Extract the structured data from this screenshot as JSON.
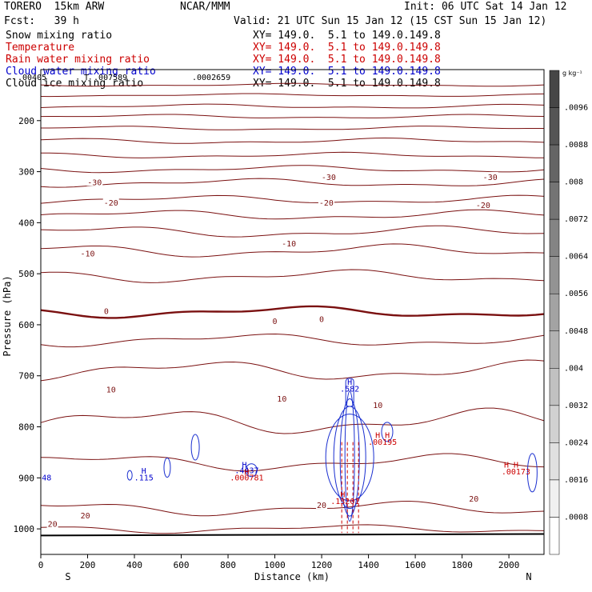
{
  "header": {
    "model": "TORERO  15km ARW",
    "org": "NCAR/MMM",
    "init": "Init: 06 UTC Sat 14 Jan 12",
    "fcst": "Fcst:   39 h",
    "valid": "Valid: 21 UTC Sun 15 Jan 12 (15 CST Sun 15 Jan 12)"
  },
  "fields": [
    {
      "name": "Snow mixing ratio",
      "xy": "",
      "color": "#000000"
    },
    {
      "name": "Temperature",
      "xy": "XY= 149.0.  5.1 to 149.0.149.8",
      "color": "#cc0000"
    },
    {
      "name": "Rain water mixing ratio",
      "xy": "XY= 149.0.  5.1 to 149.0.149.8",
      "color": "#cc0000"
    },
    {
      "name": "Cloud water mixing ratio",
      "xy": "XY= 149.0.  5.1 to 149.0.149.8",
      "color": "#0000cc"
    },
    {
      "name": "Cloud ice mixing ratio",
      "xy": "XY= 149.0.  5.1 to 149.0.149.8",
      "color": "#000000"
    }
  ],
  "snow_xy": "XY= 149.0.  5.1 to 149.0.149.8",
  "top_values": [
    ".00405",
    "T .007589",
    ".0002659"
  ],
  "chart_data": {
    "type": "contour",
    "xlabel": "Distance (km)",
    "ylabel": "Pressure (hPa)",
    "xlim": [
      0,
      2150
    ],
    "ylim": [
      1050,
      100
    ],
    "x_ticks": [
      0,
      200,
      400,
      600,
      800,
      1000,
      1200,
      1400,
      1600,
      1800,
      2000
    ],
    "y_ticks": [
      200,
      300,
      400,
      500,
      600,
      700,
      800,
      900,
      1000
    ],
    "end_labels": [
      "S",
      "N"
    ],
    "colorbar": {
      "unit": "g kg⁻¹",
      "ticks": [
        ".0096",
        ".0088",
        ".008",
        ".0072",
        ".0064",
        ".0056",
        ".0048",
        ".004",
        ".0032",
        ".0024",
        ".0016",
        ".0008"
      ]
    },
    "temperature_labels": [
      {
        "text": "-30",
        "x": 230,
        "p": 320
      },
      {
        "text": "-30",
        "x": 1230,
        "p": 310
      },
      {
        "text": "-30",
        "x": 1920,
        "p": 310
      },
      {
        "text": "-20",
        "x": 300,
        "p": 360
      },
      {
        "text": "-20",
        "x": 1220,
        "p": 360
      },
      {
        "text": "-20",
        "x": 1890,
        "p": 365
      },
      {
        "text": "-10",
        "x": 200,
        "p": 460
      },
      {
        "text": "-10",
        "x": 1060,
        "p": 440
      },
      {
        "text": "0",
        "x": 280,
        "p": 573
      },
      {
        "text": "0",
        "x": 1000,
        "p": 592
      },
      {
        "text": "0",
        "x": 1200,
        "p": 588
      },
      {
        "text": "10",
        "x": 300,
        "p": 726
      },
      {
        "text": "10",
        "x": 1030,
        "p": 744
      },
      {
        "text": "10",
        "x": 1440,
        "p": 757
      },
      {
        "text": "20",
        "x": 50,
        "p": 990
      },
      {
        "text": "20",
        "x": 190,
        "p": 973
      },
      {
        "text": "20",
        "x": 1200,
        "p": 953
      },
      {
        "text": "20",
        "x": 1850,
        "p": 940
      }
    ],
    "hl_labels": [
      {
        "text": "H",
        "x": 1320,
        "p": 718,
        "color": "#0000cc"
      },
      {
        "text": ".582",
        "x": 1320,
        "p": 731,
        "color": "#0000cc"
      },
      {
        "text": "H",
        "x": 440,
        "p": 892,
        "color": "#0000cc"
      },
      {
        "text": ".115",
        "x": 440,
        "p": 905,
        "color": "#0000cc"
      },
      {
        "text": "H",
        "x": 870,
        "p": 880,
        "color": "#0000cc"
      },
      {
        "text": ".4437",
        "x": 880,
        "p": 891,
        "color": "#0000cc"
      },
      {
        "text": "H",
        "x": 880,
        "p": 894,
        "color": "#cc0000"
      },
      {
        "text": ".000781",
        "x": 880,
        "p": 905,
        "color": "#cc0000"
      },
      {
        "text": "H H",
        "x": 1460,
        "p": 822,
        "color": "#cc0000"
      },
      {
        "text": ".00195",
        "x": 1460,
        "p": 835,
        "color": "#cc0000"
      },
      {
        "text": "H H",
        "x": 2010,
        "p": 880,
        "color": "#cc0000"
      },
      {
        "text": ".00173",
        "x": 2030,
        "p": 893,
        "color": "#cc0000"
      },
      {
        "text": "H",
        "x": 1290,
        "p": 938,
        "color": "#cc0000"
      },
      {
        "text": ".13201",
        "x": 1300,
        "p": 951,
        "color": "#cc0000"
      },
      {
        "text": "48",
        "x": 25,
        "p": 905,
        "color": "#0000cc"
      }
    ],
    "temperature_contours": [
      {
        "value": -55,
        "base": 130,
        "amp": 2
      },
      {
        "value": -52,
        "base": 150,
        "amp": 2
      },
      {
        "value": -49,
        "base": 172,
        "amp": 3
      },
      {
        "value": -46,
        "base": 192,
        "amp": 3
      },
      {
        "value": -43,
        "base": 215,
        "amp": 3
      },
      {
        "value": -40,
        "base": 240,
        "amp": 4
      },
      {
        "value": -37,
        "base": 268,
        "amp": 4
      },
      {
        "value": -33,
        "base": 295,
        "amp": 5
      },
      {
        "value": -30,
        "base": 322,
        "amp": 6
      },
      {
        "value": -25,
        "base": 355,
        "amp": 6
      },
      {
        "value": -20,
        "base": 385,
        "amp": 7
      },
      {
        "value": -15,
        "base": 418,
        "amp": 8
      },
      {
        "value": -10,
        "base": 455,
        "amp": 9
      },
      {
        "value": -5,
        "base": 505,
        "amp": 9
      },
      {
        "value": 0,
        "base": 575,
        "amp": 8
      },
      {
        "value": 5,
        "base": 630,
        "amp": 9
      },
      {
        "value": 10,
        "base": 690,
        "amp": 14
      },
      {
        "value": 15,
        "base": 790,
        "amp": 18
      },
      {
        "value": 18,
        "base": 870,
        "amp": 12
      },
      {
        "value": 20,
        "base": 960,
        "amp": 10
      },
      {
        "value": 24,
        "base": 1000,
        "amp": 6
      }
    ]
  }
}
